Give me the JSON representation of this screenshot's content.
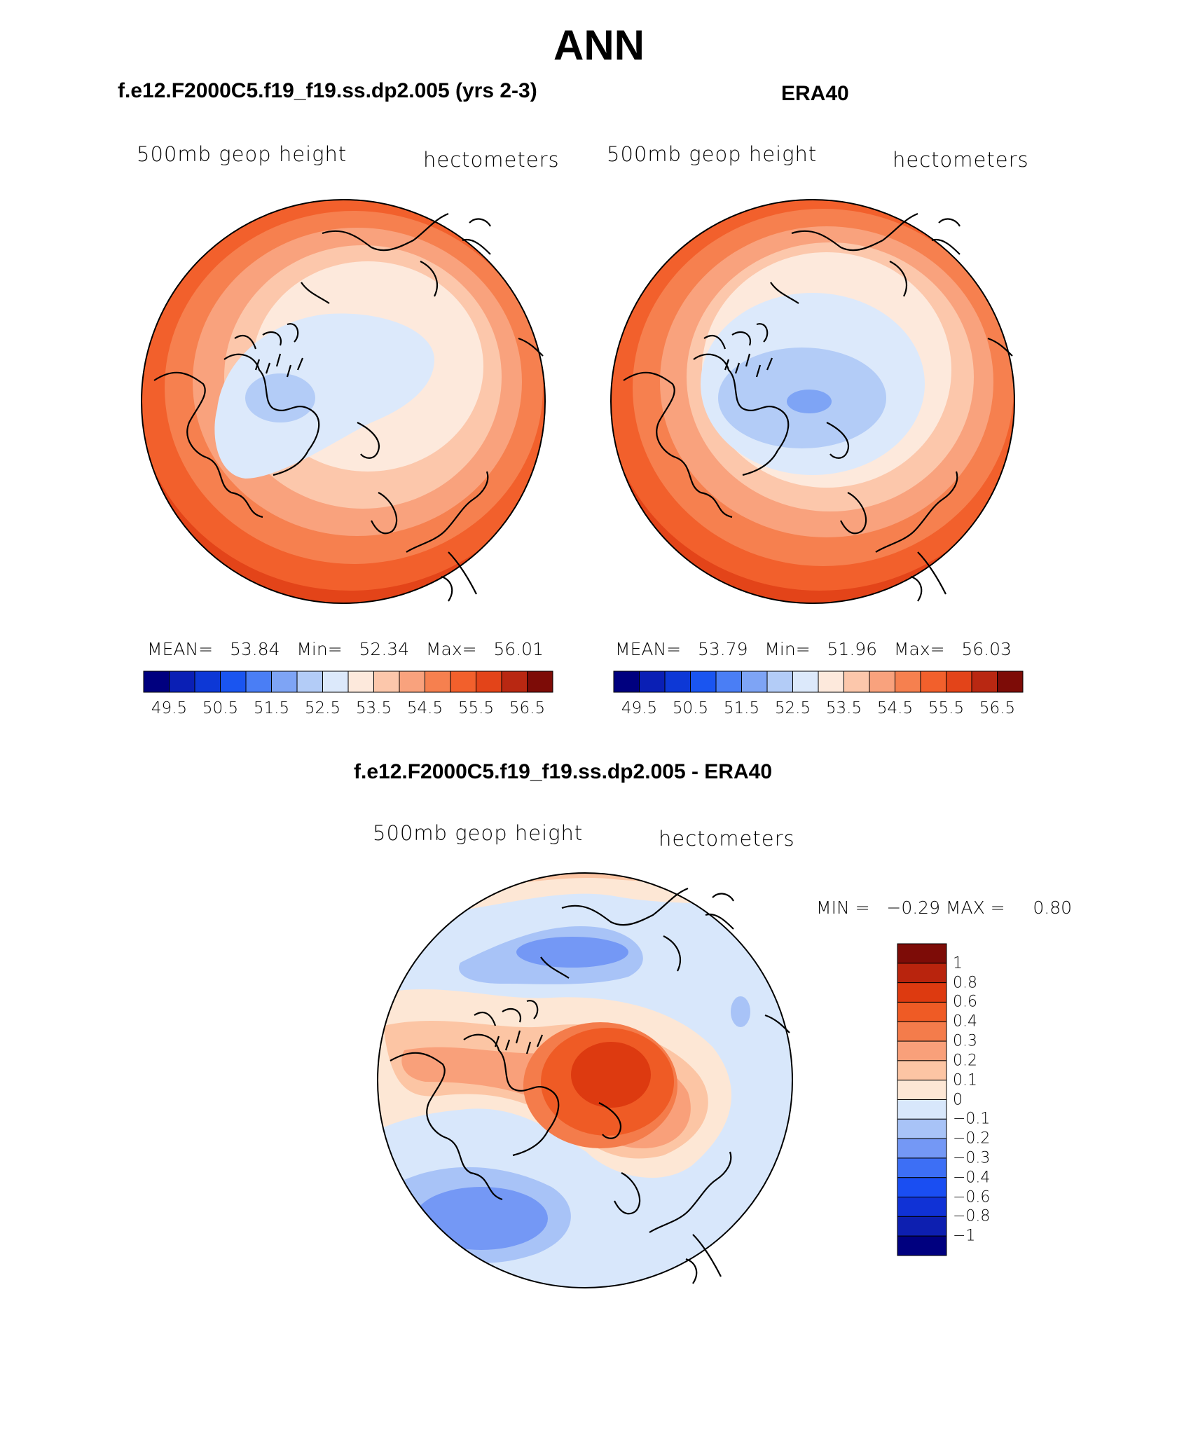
{
  "main_title": "ANN",
  "colors": {
    "abs_scale": [
      "#00007f",
      "#0a1fb5",
      "#0d38d6",
      "#1a55f0",
      "#4a7ef5",
      "#7ea4f5",
      "#b3ccf7",
      "#dce9fb",
      "#fde9dc",
      "#fcc7ab",
      "#f9a27d",
      "#f6804f",
      "#f2602c",
      "#e34419",
      "#b92812",
      "#7d0c07"
    ],
    "diff_scale": [
      "#00007f",
      "#0d1fb0",
      "#1032d6",
      "#1a4ef2",
      "#3d6ff5",
      "#7498f5",
      "#a8c3f7",
      "#d8e7fb",
      "#fde7d5",
      "#fcc5a4",
      "#f9a07a",
      "#f47c4b",
      "#ef5b25",
      "#dd3a10",
      "#b9240d",
      "#7d0c07"
    ]
  },
  "panels": [
    {
      "title": "f.e12.F2000C5.f19_f19.ss.dp2.005 (yrs 2-3)",
      "left_label": "500mb geop height",
      "right_label": "hectometers",
      "stats_text": "MEAN=   53.84   Min=   52.34   Max=   56.01",
      "colorbar_ticks": [
        "49.5",
        "50.5",
        "51.5",
        "52.5",
        "53.5",
        "54.5",
        "55.5",
        "56.5"
      ]
    },
    {
      "title": "ERA40",
      "left_label": "500mb geop height",
      "right_label": "hectometers",
      "stats_text": "MEAN=   53.79   Min=   51.96   Max=   56.03",
      "colorbar_ticks": [
        "49.5",
        "50.5",
        "51.5",
        "52.5",
        "53.5",
        "54.5",
        "55.5",
        "56.5"
      ]
    }
  ],
  "diff_panel": {
    "title": "f.e12.F2000C5.f19_f19.ss.dp2.005 - ERA40",
    "left_label": "500mb geop height",
    "right_label": "hectometers",
    "minmax_text": "MIN =   −0.29 MAX =     0.80",
    "colorbar_labels": [
      "1",
      "0.8",
      "0.6",
      "0.4",
      "0.3",
      "0.2",
      "0.1",
      "0",
      "−0.1",
      "−0.2",
      "−0.3",
      "−0.4",
      "−0.6",
      "−0.8",
      "−1"
    ]
  }
}
